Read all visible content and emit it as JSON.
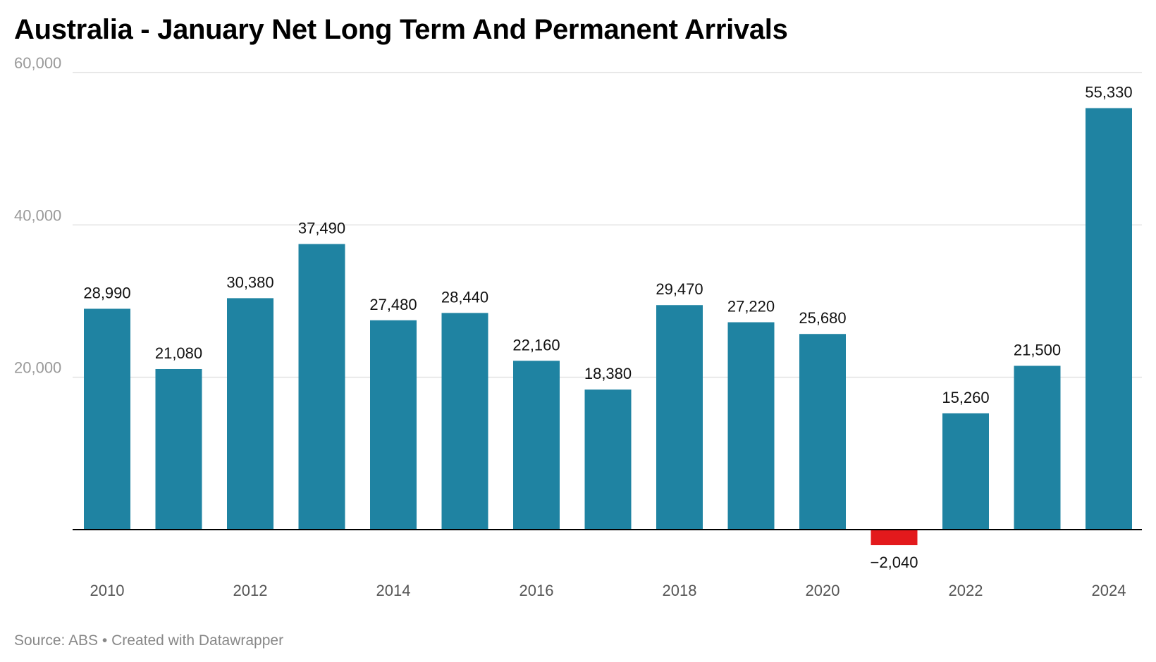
{
  "chart_data": {
    "type": "bar",
    "title": "Australia - January Net Long Term And Permanent Arrivals",
    "categories": [
      "2010",
      "2011",
      "2012",
      "2013",
      "2014",
      "2015",
      "2016",
      "2017",
      "2018",
      "2019",
      "2020",
      "2021",
      "2022",
      "2023",
      "2024"
    ],
    "values": [
      28990,
      21080,
      30380,
      37490,
      27480,
      28440,
      22160,
      18380,
      29470,
      27220,
      25680,
      -2040,
      15260,
      21500,
      55330
    ],
    "value_labels": [
      "28,990",
      "21,080",
      "30,380",
      "37,490",
      "27,480",
      "28,440",
      "22,160",
      "18,380",
      "29,470",
      "27,220",
      "25,680",
      "−2,040",
      "15,260",
      "21,500",
      "55,330"
    ],
    "x_tick_labels": [
      "2010",
      "",
      "2012",
      "",
      "2014",
      "",
      "2016",
      "",
      "2018",
      "",
      "2020",
      "",
      "2022",
      "",
      "2024"
    ],
    "y_ticks": [
      20000,
      40000,
      60000
    ],
    "y_tick_labels": [
      "20,000",
      "40,000",
      "60,000"
    ],
    "ylim": [
      -4000,
      60000
    ],
    "xlabel": "",
    "ylabel": "",
    "grid": true,
    "colors": {
      "positive": "#1f83a2",
      "negative": "#e3191c",
      "grid": "#e1e1e1",
      "baseline": "#000000",
      "tick_label": "#9a9a9a",
      "year_label": "#555555",
      "value_label": "#111111"
    }
  },
  "footer": {
    "source": "Source: ABS",
    "separator": "•",
    "credit": "Created with Datawrapper"
  }
}
